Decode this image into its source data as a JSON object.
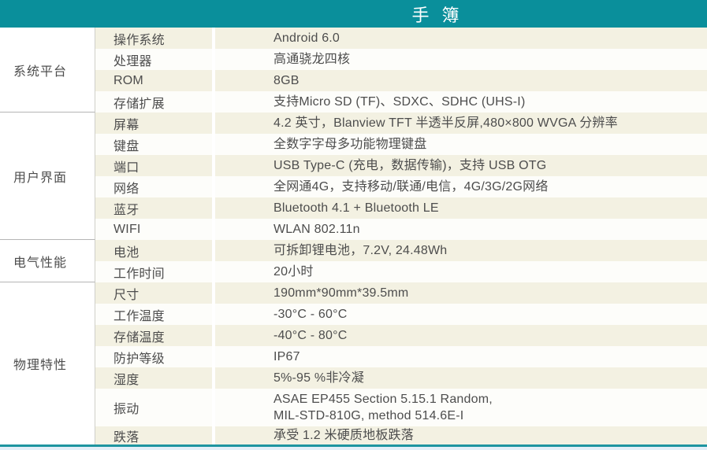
{
  "header": {
    "title": "手 簿"
  },
  "colors": {
    "header_bg": "#0a8f9b",
    "row_beige": "#f3f1e2",
    "row_white": "#fdfdfa",
    "text": "#4d4d4d",
    "section_divider": "#b5b5b5",
    "column_divider": "#cfcfc9",
    "bottom_line": "#1e95a0",
    "bottom_edge": "#e3eff8"
  },
  "table": {
    "sections": [
      {
        "name": "系统平台",
        "rows": [
          {
            "label": "操作系统",
            "value": "Android 6.0"
          },
          {
            "label": "处理器",
            "value": "高通骁龙四核"
          },
          {
            "label": "ROM",
            "value": "8GB"
          },
          {
            "label": "存储扩展",
            "value": "支持Micro SD (TF)、SDXC、SDHC (UHS-I)"
          }
        ]
      },
      {
        "name": "用户界面",
        "rows": [
          {
            "label": "屏幕",
            "value": "4.2 英寸，Blanview TFT 半透半反屏,480×800 WVGA 分辨率"
          },
          {
            "label": "键盘",
            "value": "全数字字母多功能物理键盘"
          },
          {
            "label": "端口",
            "value": "USB Type-C (充电，数据传输)，支持 USB OTG"
          },
          {
            "label": "网络",
            "value": "全网通4G，支持移动/联通/电信，4G/3G/2G网络"
          },
          {
            "label": "蓝牙",
            "value": "Bluetooth 4.1 + Bluetooth LE"
          },
          {
            "label": "WIFI",
            "value": "WLAN 802.11n"
          }
        ]
      },
      {
        "name": "电气性能",
        "rows": [
          {
            "label": "电池",
            "value": "可拆卸锂电池，7.2V, 24.48Wh"
          },
          {
            "label": "工作时间",
            "value": "20小时"
          }
        ]
      },
      {
        "name": "物理特性",
        "rows": [
          {
            "label": "尺寸",
            "value": "190mm*90mm*39.5mm"
          },
          {
            "label": "工作温度",
            "value": "-30°C - 60°C"
          },
          {
            "label": "存储温度",
            "value": "-40°C - 80°C"
          },
          {
            "label": "防护等级",
            "value": "IP67"
          },
          {
            "label": "湿度",
            "value": "5%-95 %非冷凝"
          },
          {
            "label": "振动",
            "value": "ASAE EP455 Section 5.15.1 Random,\nMIL-STD-810G, method 514.6E-I"
          },
          {
            "label": "跌落",
            "value": "承受 1.2 米硬质地板跌落"
          }
        ]
      }
    ]
  }
}
